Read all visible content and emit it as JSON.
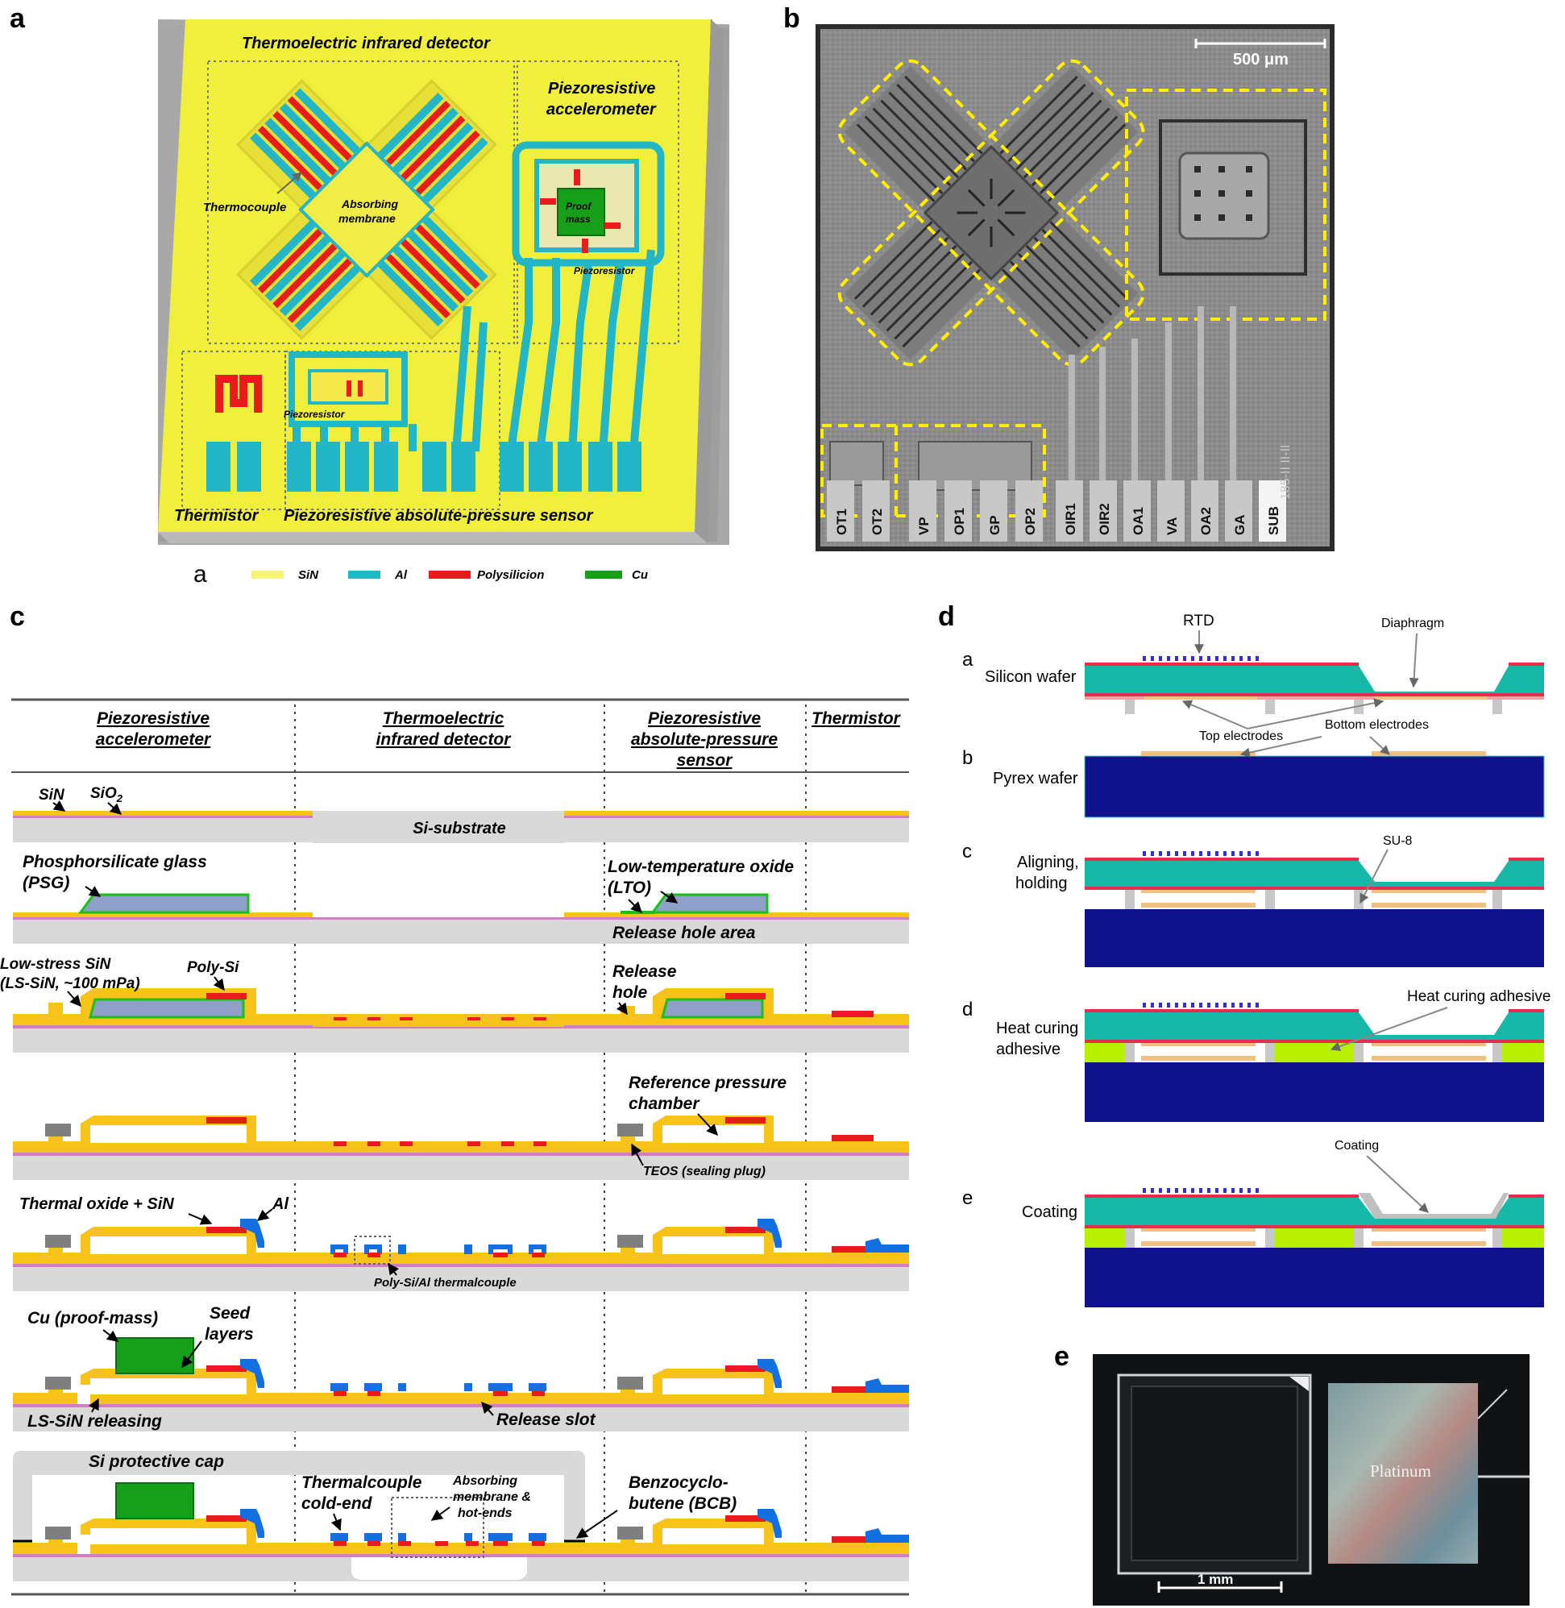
{
  "panels": {
    "a": {
      "label": "a",
      "title_ir": "Thermoelectric infrared detector",
      "title_acc_1": "Piezoresistive",
      "title_acc_2": "accelerometer",
      "thermocouple": "Thermocouple",
      "absorbing_1": "Absorbing",
      "absorbing_2": "membrane",
      "proof_1": "Proof",
      "proof_2": "mass",
      "piezoresistor_acc": "Piezoresistor",
      "piezoresistor_ps": "Piezoresistor",
      "thermistor": "Thermistor",
      "pressure_sensor": "Piezoresistive absolute-pressure sensor",
      "legend_label": "a",
      "legend": [
        {
          "name": "SiN",
          "color": "#f5f57a"
        },
        {
          "name": "Al",
          "color": "#22b6c6"
        },
        {
          "name": "Polysilicion",
          "color": "#e81c1c"
        },
        {
          "name": "Cu",
          "color": "#16a01a"
        }
      ]
    },
    "b": {
      "label": "b",
      "scale_bar": "500 μm",
      "pads": [
        "OT1",
        "OT2",
        "VP",
        "OP1",
        "GP",
        "OP2",
        "OIR1",
        "OIR2",
        "OA1",
        "VA",
        "OA2",
        "GA",
        "SUB"
      ],
      "chip_code": "185-II II-II"
    },
    "c": {
      "label": "c",
      "headers": [
        [
          "Piezoresistive",
          "accelerometer"
        ],
        [
          "Thermoelectric",
          "infrared detector"
        ],
        [
          "Piezoresistive",
          "absolute-pressure",
          "sensor"
        ],
        [
          "Thermistor"
        ]
      ],
      "sin": "SiN",
      "sio2_base": "SiO",
      "sio2_sub": "2",
      "si_substrate": "Si-substrate",
      "psg_1": "Phosphorsilicate glass",
      "psg_2": "(PSG)",
      "lto_1": "Low-temperature oxide",
      "lto_2": "(LTO)",
      "release_hole_area": "Release hole area",
      "ls_sin_1": "Low-stress SiN",
      "ls_sin_2": "(LS-SiN, ~100 mPa)",
      "poly_si": "Poly-Si",
      "release_hole_1": "Release",
      "release_hole_2": "hole",
      "ref_chamber_1": "Reference pressure",
      "ref_chamber_2": "chamber",
      "teos": "TEOS (sealing plug)",
      "thermal_oxide": "Thermal oxide + SiN",
      "al": "Al",
      "thermalcouple": "Poly-Si/Al thermalcouple",
      "cu_proof": "Cu (proof-mass)",
      "seed_1": "Seed",
      "seed_2": "layers",
      "ls_sin_release": "LS-SiN releasing",
      "release_slot": "Release slot",
      "si_cap": "Si protective cap",
      "cold_end_1": "Thermalcouple",
      "cold_end_2": "cold-end",
      "abs_hot_1": "Absorbing",
      "abs_hot_2": "membrane &",
      "abs_hot_3": "hot-ends",
      "bcb_1": "Benzocyclo-",
      "bcb_2": "butene (BCB)"
    },
    "d": {
      "label": "d",
      "steps": [
        {
          "letter": "a",
          "lines": [
            "Silicon wafer"
          ]
        },
        {
          "letter": "b",
          "lines": [
            "Pyrex wafer"
          ]
        },
        {
          "letter": "c",
          "lines": [
            "Aligning,",
            "holding"
          ]
        },
        {
          "letter": "d",
          "lines": [
            "Heat curing",
            "adhesive"
          ]
        },
        {
          "letter": "e",
          "lines": [
            "Coating"
          ]
        }
      ],
      "rtd": "RTD",
      "diaphragm": "Diaphragm",
      "top_electrodes": "Top electrodes",
      "bottom_electrodes": "Bottom electrodes",
      "su8": "SU-8",
      "heat_curing_adhesive": "Heat curing adhesive",
      "coating": "Coating"
    },
    "e": {
      "label": "e",
      "platinum": "Platinum",
      "scale_bar": "1 mm"
    }
  },
  "colors": {
    "chip_yellow": "#f0f03c",
    "al_cyan": "#22b6c6",
    "poly_red": "#e81c1c",
    "cu_green": "#16a01a",
    "layer_yellow": "#f7c318",
    "substrate_gray": "#d9d9d9",
    "silicon_teal": "#18b8a8",
    "pyrex_navy": "#10128c",
    "adhesive_green": "#b8f000",
    "sem_gray": "#8a8a8a",
    "highlight_yellow": "#ffee00"
  }
}
